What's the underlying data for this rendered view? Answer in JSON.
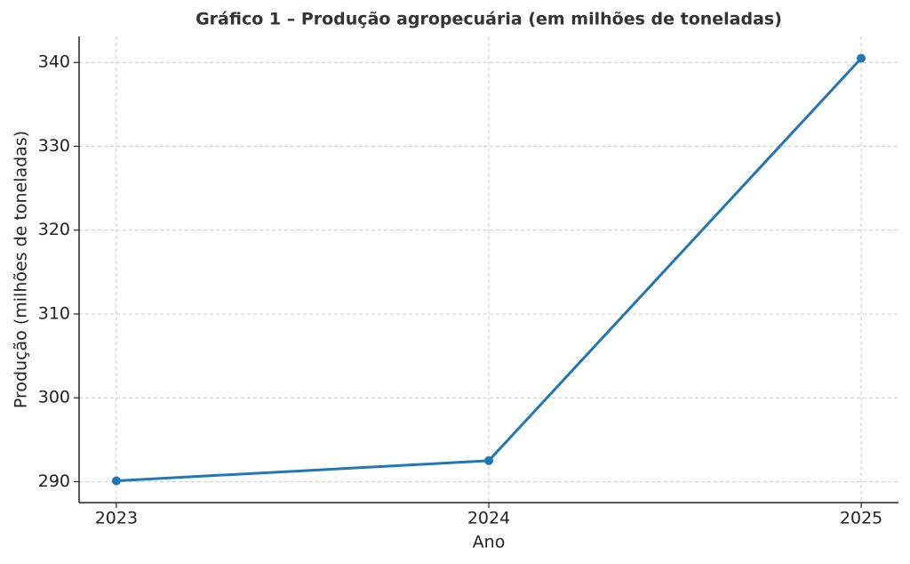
{
  "chart_data": {
    "type": "line",
    "title": "Gráfico 1 – Produção agropecuária (em milhões de toneladas)",
    "xlabel": "Ano",
    "ylabel": "Produção (milhões de toneladas)",
    "x": [
      2023,
      2024,
      2025
    ],
    "values": [
      290.1,
      292.5,
      340.5
    ],
    "color": "#1f77b4",
    "xlim": [
      2022.9,
      2025.1
    ],
    "xticks": [
      2023,
      2024,
      2025
    ],
    "ylim": [
      287.5,
      343.1
    ],
    "yticks": [
      290,
      300,
      310,
      320,
      330,
      340
    ],
    "grid": true
  }
}
